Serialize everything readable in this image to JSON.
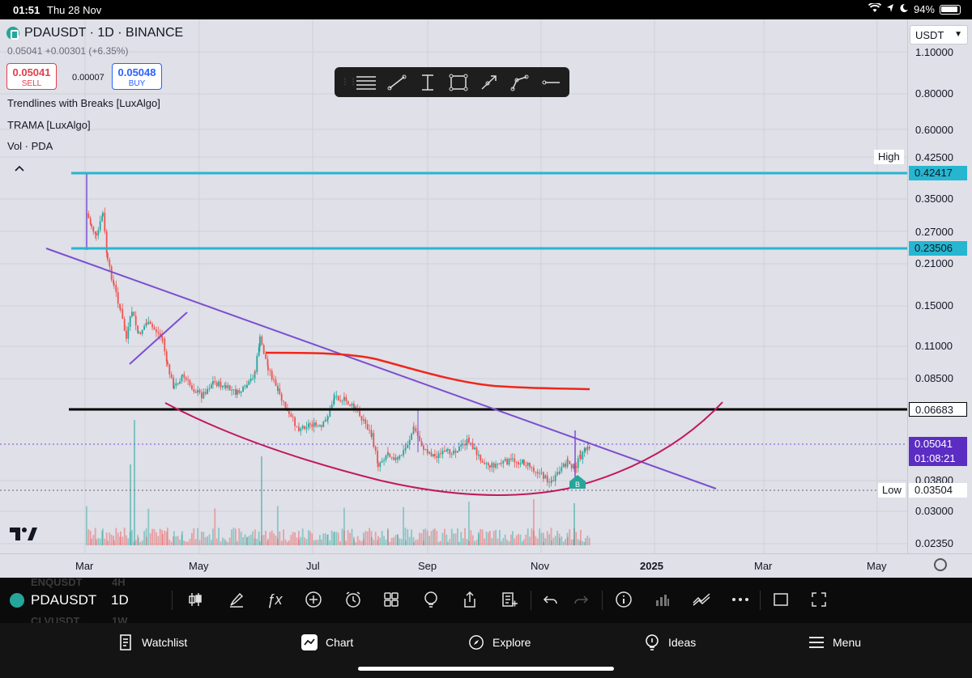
{
  "status_bar": {
    "time": "01:51",
    "date": "Thu 28 Nov",
    "battery": "94%"
  },
  "symbol_header": {
    "title": "PDAUSDT · 1D · BINANCE",
    "price_line": "0.05041 +0.00301 (+6.35%)",
    "sell": {
      "value": "0.05041",
      "label": "SELL"
    },
    "spread": "0.00007",
    "buy": {
      "value": "0.05048",
      "label": "BUY"
    }
  },
  "indicators": [
    "Trendlines with Breaks [LuxAlgo]",
    "TRAMA [LuxAlgo]",
    "Vol · PDA"
  ],
  "drawing_tools": [
    "horizontal-lines-icon",
    "trend-line-icon",
    "text-cursor-icon",
    "rectangle-icon",
    "arrow-icon",
    "path-icon",
    "horizontal-ray-icon"
  ],
  "price_axis": {
    "currency": "USDT",
    "ticks": [
      "1.10000",
      "0.80000",
      "0.60000",
      "0.42500",
      "0.35000",
      "0.27000",
      "0.21000",
      "0.15000",
      "0.11000",
      "0.08500",
      "0.03800",
      "0.03000",
      "0.02350"
    ],
    "high_label": "High",
    "high_value": "0.42417",
    "level_value": "0.23506",
    "black_level_value": "0.06683",
    "last_price": "0.05041",
    "countdown": "01:08:21",
    "low_label": "Low",
    "low_value": "0.03504"
  },
  "time_axis": [
    "Mar",
    "May",
    "Jul",
    "Sep",
    "Nov",
    "2025",
    "Mar",
    "May"
  ],
  "chart_marker": "B",
  "symbol_bar": {
    "symbol": "PDAUSDT",
    "interval": "1D",
    "ghost_top": "ENQUSDT",
    "ghost_top_tf": "4H",
    "ghost_bottom": "CLVUSDT",
    "ghost_bottom_tf": "1W"
  },
  "tabs": [
    {
      "label": "Watchlist",
      "icon": "watchlist-icon"
    },
    {
      "label": "Chart",
      "icon": "chart-icon"
    },
    {
      "label": "Explore",
      "icon": "compass-icon"
    },
    {
      "label": "Ideas",
      "icon": "lightbulb-icon"
    },
    {
      "label": "Menu",
      "icon": "menu-icon"
    }
  ],
  "colors": {
    "cyan": "#26b6d0",
    "purple": "#7b4fcf",
    "red": "#f0261a",
    "crimson": "#c2185b",
    "up": "#26a69a",
    "down": "#ef5350"
  }
}
